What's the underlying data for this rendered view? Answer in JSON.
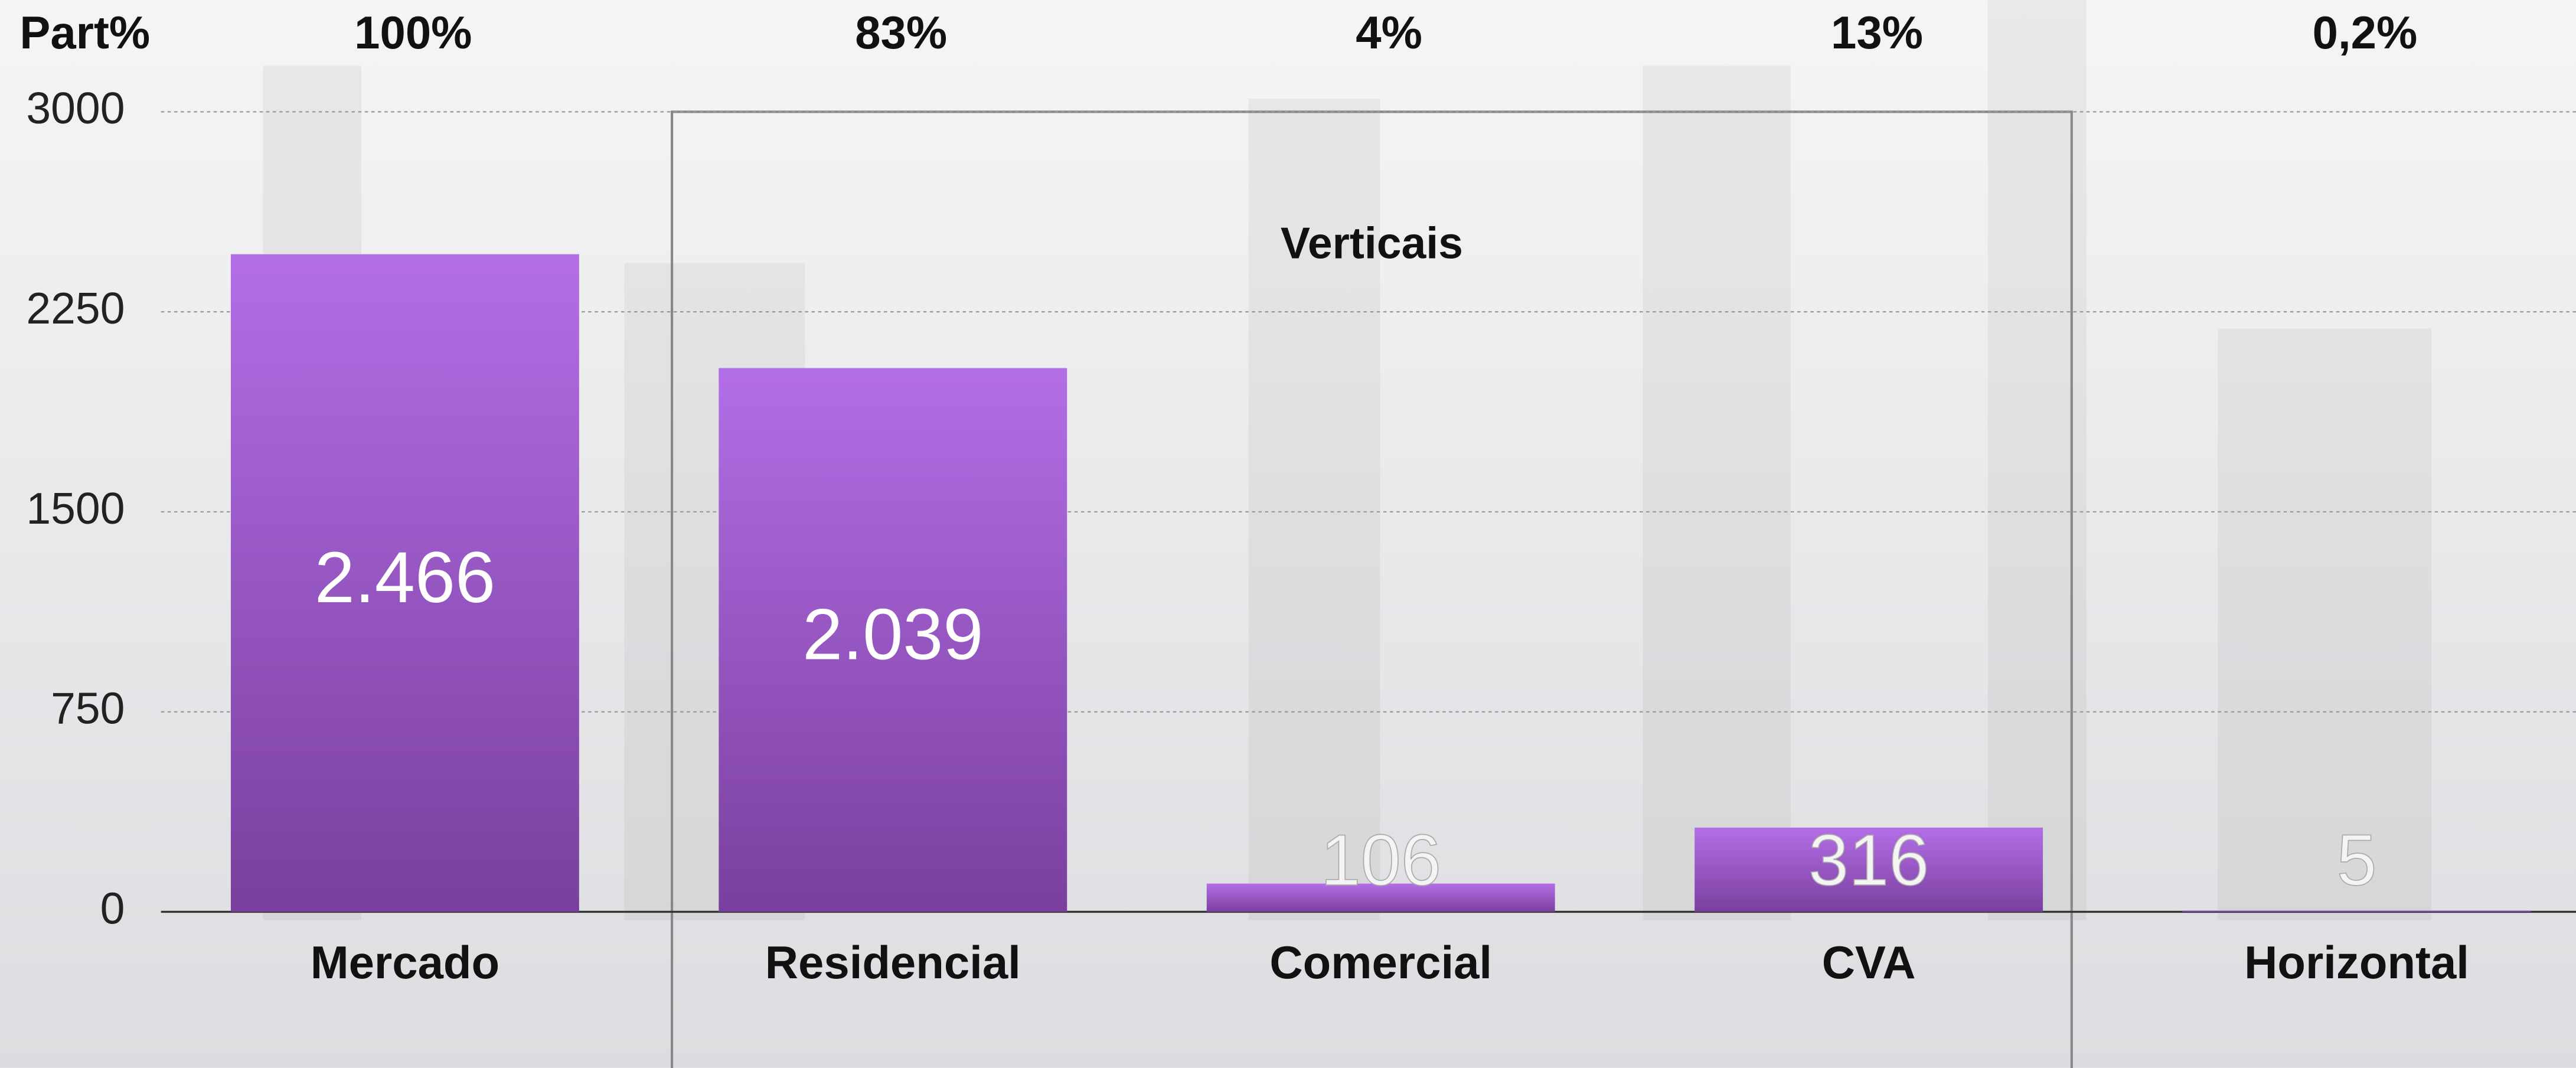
{
  "chart_data": {
    "type": "bar",
    "share_header": "Part%",
    "share_labels": [
      "100%",
      "83%",
      "4%",
      "13%",
      "0,2%"
    ],
    "group_label": "Verticais",
    "categories": [
      "Mercado",
      "Residencial",
      "Comercial",
      "CVA",
      "Horizontal"
    ],
    "values": [
      2466,
      2039,
      106,
      316,
      5
    ],
    "value_labels": [
      "2.466",
      "2.039",
      "106",
      "316",
      "5"
    ],
    "color": "#9a55cc",
    "ylim": [
      0,
      3000
    ],
    "yticks": [
      0,
      750,
      1500,
      2250,
      3000
    ],
    "grid": true
  }
}
